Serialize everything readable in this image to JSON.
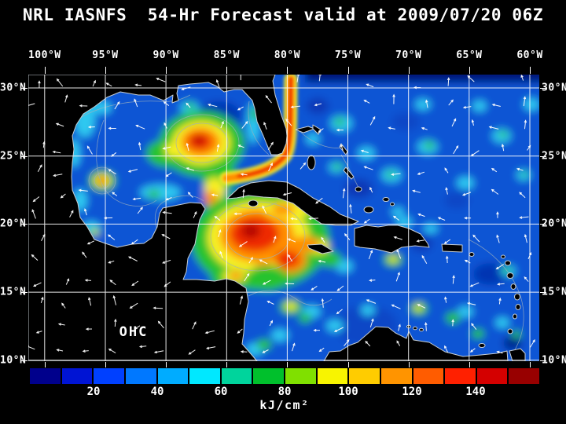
{
  "title": "NRL IASNFS  54-Hr Forecast valid at 2009/07/20 06Z",
  "map": {
    "field_label": "OHC",
    "axes": {
      "lon_labels": [
        "100°W",
        "95°W",
        "90°W",
        "85°W",
        "80°W",
        "75°W",
        "70°W",
        "65°W",
        "60°W"
      ],
      "lat_labels_left": [
        "30°N",
        "25°N",
        "20°N",
        "15°N",
        "10°N"
      ],
      "lat_labels_right": [
        "30°N",
        "25°N",
        "20°N",
        "15°N",
        "10°N"
      ]
    }
  },
  "colorbar": {
    "tick_labels": [
      "20",
      "40",
      "60",
      "80",
      "100",
      "120",
      "140"
    ],
    "unit_label": "kJ/cm²",
    "range": [
      0,
      160
    ],
    "segment_colors": [
      "#00008c",
      "#0014d4",
      "#0040ff",
      "#0078ff",
      "#00acff",
      "#00e8ff",
      "#00d49c",
      "#00c02c",
      "#80e000",
      "#f8f400",
      "#ffcc00",
      "#ff9400",
      "#ff5c00",
      "#ff2000",
      "#d40000",
      "#980000"
    ]
  },
  "chart_data": {
    "type": "heatmap",
    "title": "NRL IASNFS  54-Hr Forecast valid at 2009/07/20 06Z",
    "variable": "OHC",
    "unit": "kJ/cm²",
    "colorbar_ticks": [
      20,
      40,
      60,
      80,
      100,
      120,
      140
    ],
    "colorbar_range": [
      0,
      160
    ],
    "lon_ticks_deg_w": [
      100,
      95,
      90,
      85,
      80,
      75,
      70,
      65,
      60
    ],
    "lat_ticks_deg_n": [
      30,
      25,
      20,
      15,
      10
    ]
  }
}
